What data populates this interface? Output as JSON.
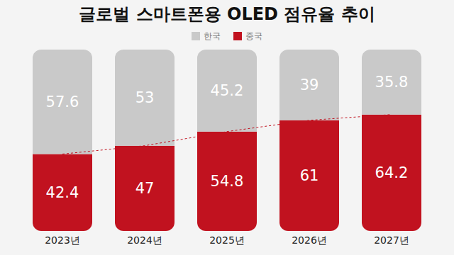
{
  "chart_data": {
    "type": "bar",
    "title": "글로벌 스마트폰용 OLED 점유율 추이",
    "categories": [
      "2023년",
      "2024년",
      "2025년",
      "2026년",
      "2027년"
    ],
    "series": [
      {
        "name": "한국",
        "color": "#c9c9c9",
        "values": [
          57.6,
          53,
          45.2,
          39,
          35.8
        ]
      },
      {
        "name": "중국",
        "color": "#c1121f",
        "values": [
          42.4,
          47,
          54.8,
          61,
          64.2
        ]
      }
    ],
    "ylim": [
      0,
      100
    ],
    "stacked": true,
    "data_labels": true,
    "tick_labels": "x",
    "legend": "top"
  }
}
